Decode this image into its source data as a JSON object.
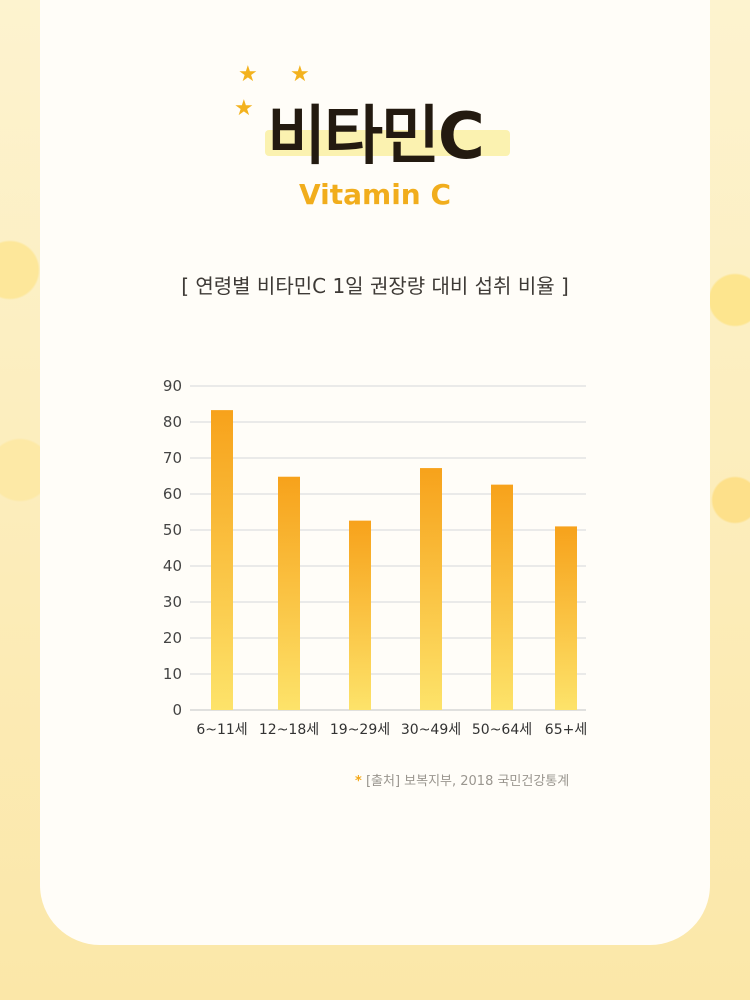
{
  "header": {
    "title": "비타민C",
    "subtitle": "Vitamin C",
    "caption": "[ 연령별 비타민C 1일 권장량 대비 섭취 비율 ]"
  },
  "source": {
    "marker": "*",
    "text": "[출처] 보복지부, 2018 국민건강통계"
  },
  "colors": {
    "accent": "#f1ad1c",
    "bar_top": "#f7a21b",
    "bar_bottom": "#fde36a"
  },
  "chart_data": {
    "type": "bar",
    "categories": [
      "6~11세",
      "12~18세",
      "19~29세",
      "30~49세",
      "50~64세",
      "65+세"
    ],
    "values": [
      83.3,
      64.8,
      52.6,
      67.2,
      62.6,
      51.0
    ],
    "ylim": [
      0,
      90
    ],
    "yticks": [
      "0",
      "10",
      "20",
      "30",
      "40",
      "50",
      "60",
      "70",
      "80",
      "90"
    ],
    "grid": true,
    "title": "",
    "xlabel": "",
    "ylabel": ""
  }
}
